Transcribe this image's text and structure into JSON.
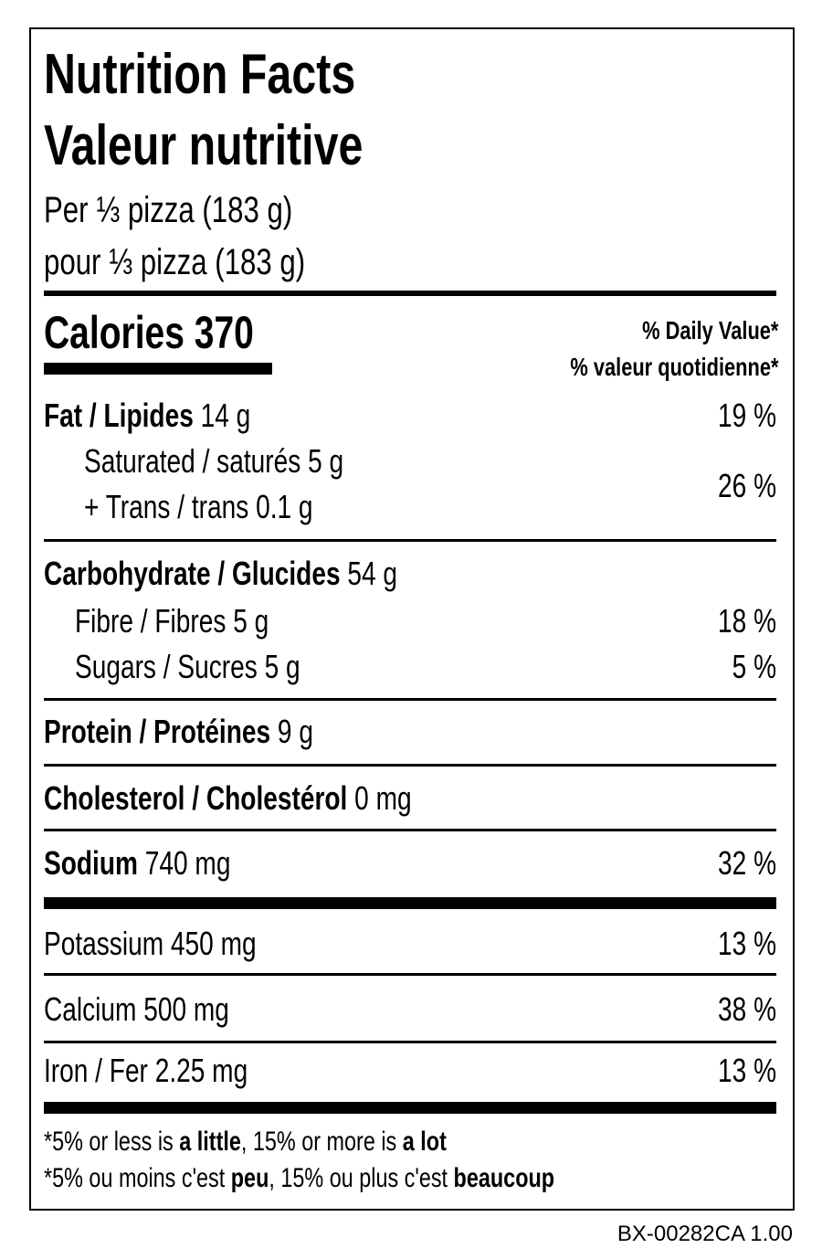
{
  "header": {
    "title": "Nutrition Facts",
    "title_fr": "Valeur nutritive",
    "serving": "Per ⅓ pizza (183 g)",
    "serving_fr": "pour ⅓ pizza (183 g)"
  },
  "calories": {
    "label": "Calories",
    "amount": "370"
  },
  "daily_value": {
    "label": "% Daily Value*",
    "label_fr": "% valeur quotidienne*"
  },
  "nutrients": [
    {
      "name": "Fat / Lipides",
      "amount": "14 g",
      "percent": "19 %"
    },
    {
      "name": "Saturated / saturés",
      "amount": "5 g",
      "percent": "26 %"
    },
    {
      "name": "+ Trans / trans",
      "amount": "0.1 g"
    },
    {
      "name": "Carbohydrate / Glucides",
      "amount": "54 g"
    },
    {
      "name": "Fibre / Fibres",
      "amount": "5 g",
      "percent": "18 %"
    },
    {
      "name": "Sugars / Sucres",
      "amount": "5 g",
      "percent": "5 %"
    },
    {
      "name": "Protein / Protéines",
      "amount": "9 g"
    },
    {
      "name": "Cholesterol / Cholestérol",
      "amount": "0 mg"
    },
    {
      "name": "Sodium",
      "amount": "740 mg",
      "percent": "32 %"
    },
    {
      "name": "Potassium",
      "amount": "450 mg",
      "percent": "13 %"
    },
    {
      "name": "Calcium",
      "amount": "500 mg",
      "percent": "38 %"
    },
    {
      "name": "Iron / Fer",
      "amount": "2.25 mg",
      "percent": "13 %"
    }
  ],
  "footnotes": [
    [
      "*5% or less is ",
      "a little",
      ", 15% or more is ",
      "a lot"
    ],
    [
      "*5% ou moins c'est ",
      "peu",
      ", 15% ou plus c'est ",
      "beaucoup"
    ]
  ],
  "code": "BX-00282CA 1.00"
}
